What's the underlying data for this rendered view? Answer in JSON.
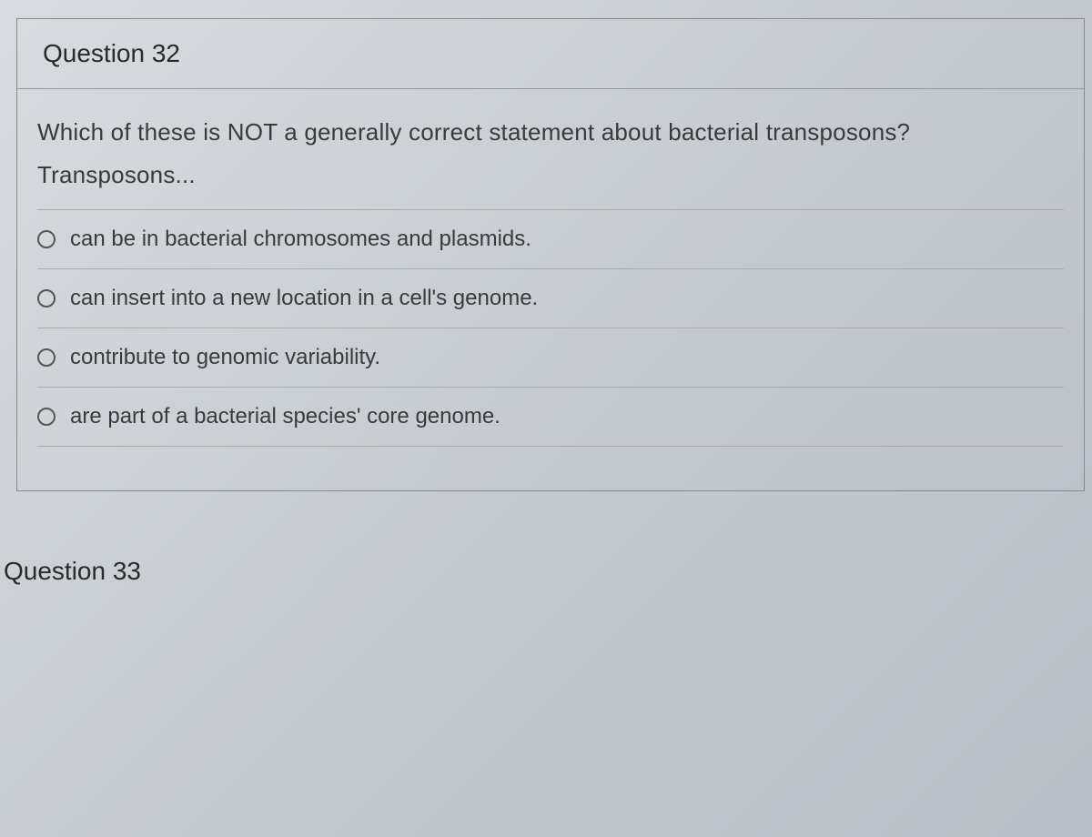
{
  "question32": {
    "title": "Question 32",
    "prompt_line1": "Which of these is NOT a generally correct statement about bacterial transposons?",
    "prompt_line2": "Transposons...",
    "options": [
      {
        "label": "can be in bacterial chromosomes and plasmids."
      },
      {
        "label": "can insert into a new location in a cell's genome."
      },
      {
        "label": "contribute to genomic variability."
      },
      {
        "label": "are part of a bacterial species' core genome."
      }
    ]
  },
  "question33": {
    "title": "Question 33"
  },
  "styling": {
    "background_gradient_start": "#d8dce0",
    "background_gradient_end": "#b8bec5",
    "border_color": "#888888",
    "divider_color": "#aaaaaa",
    "text_color": "#3a3a3a",
    "title_color": "#2a2a2a",
    "radio_border_color": "#555555",
    "title_fontsize": 28,
    "body_fontsize": 26,
    "option_fontsize": 24,
    "font_weight_body": 300,
    "font_weight_title": 400
  }
}
